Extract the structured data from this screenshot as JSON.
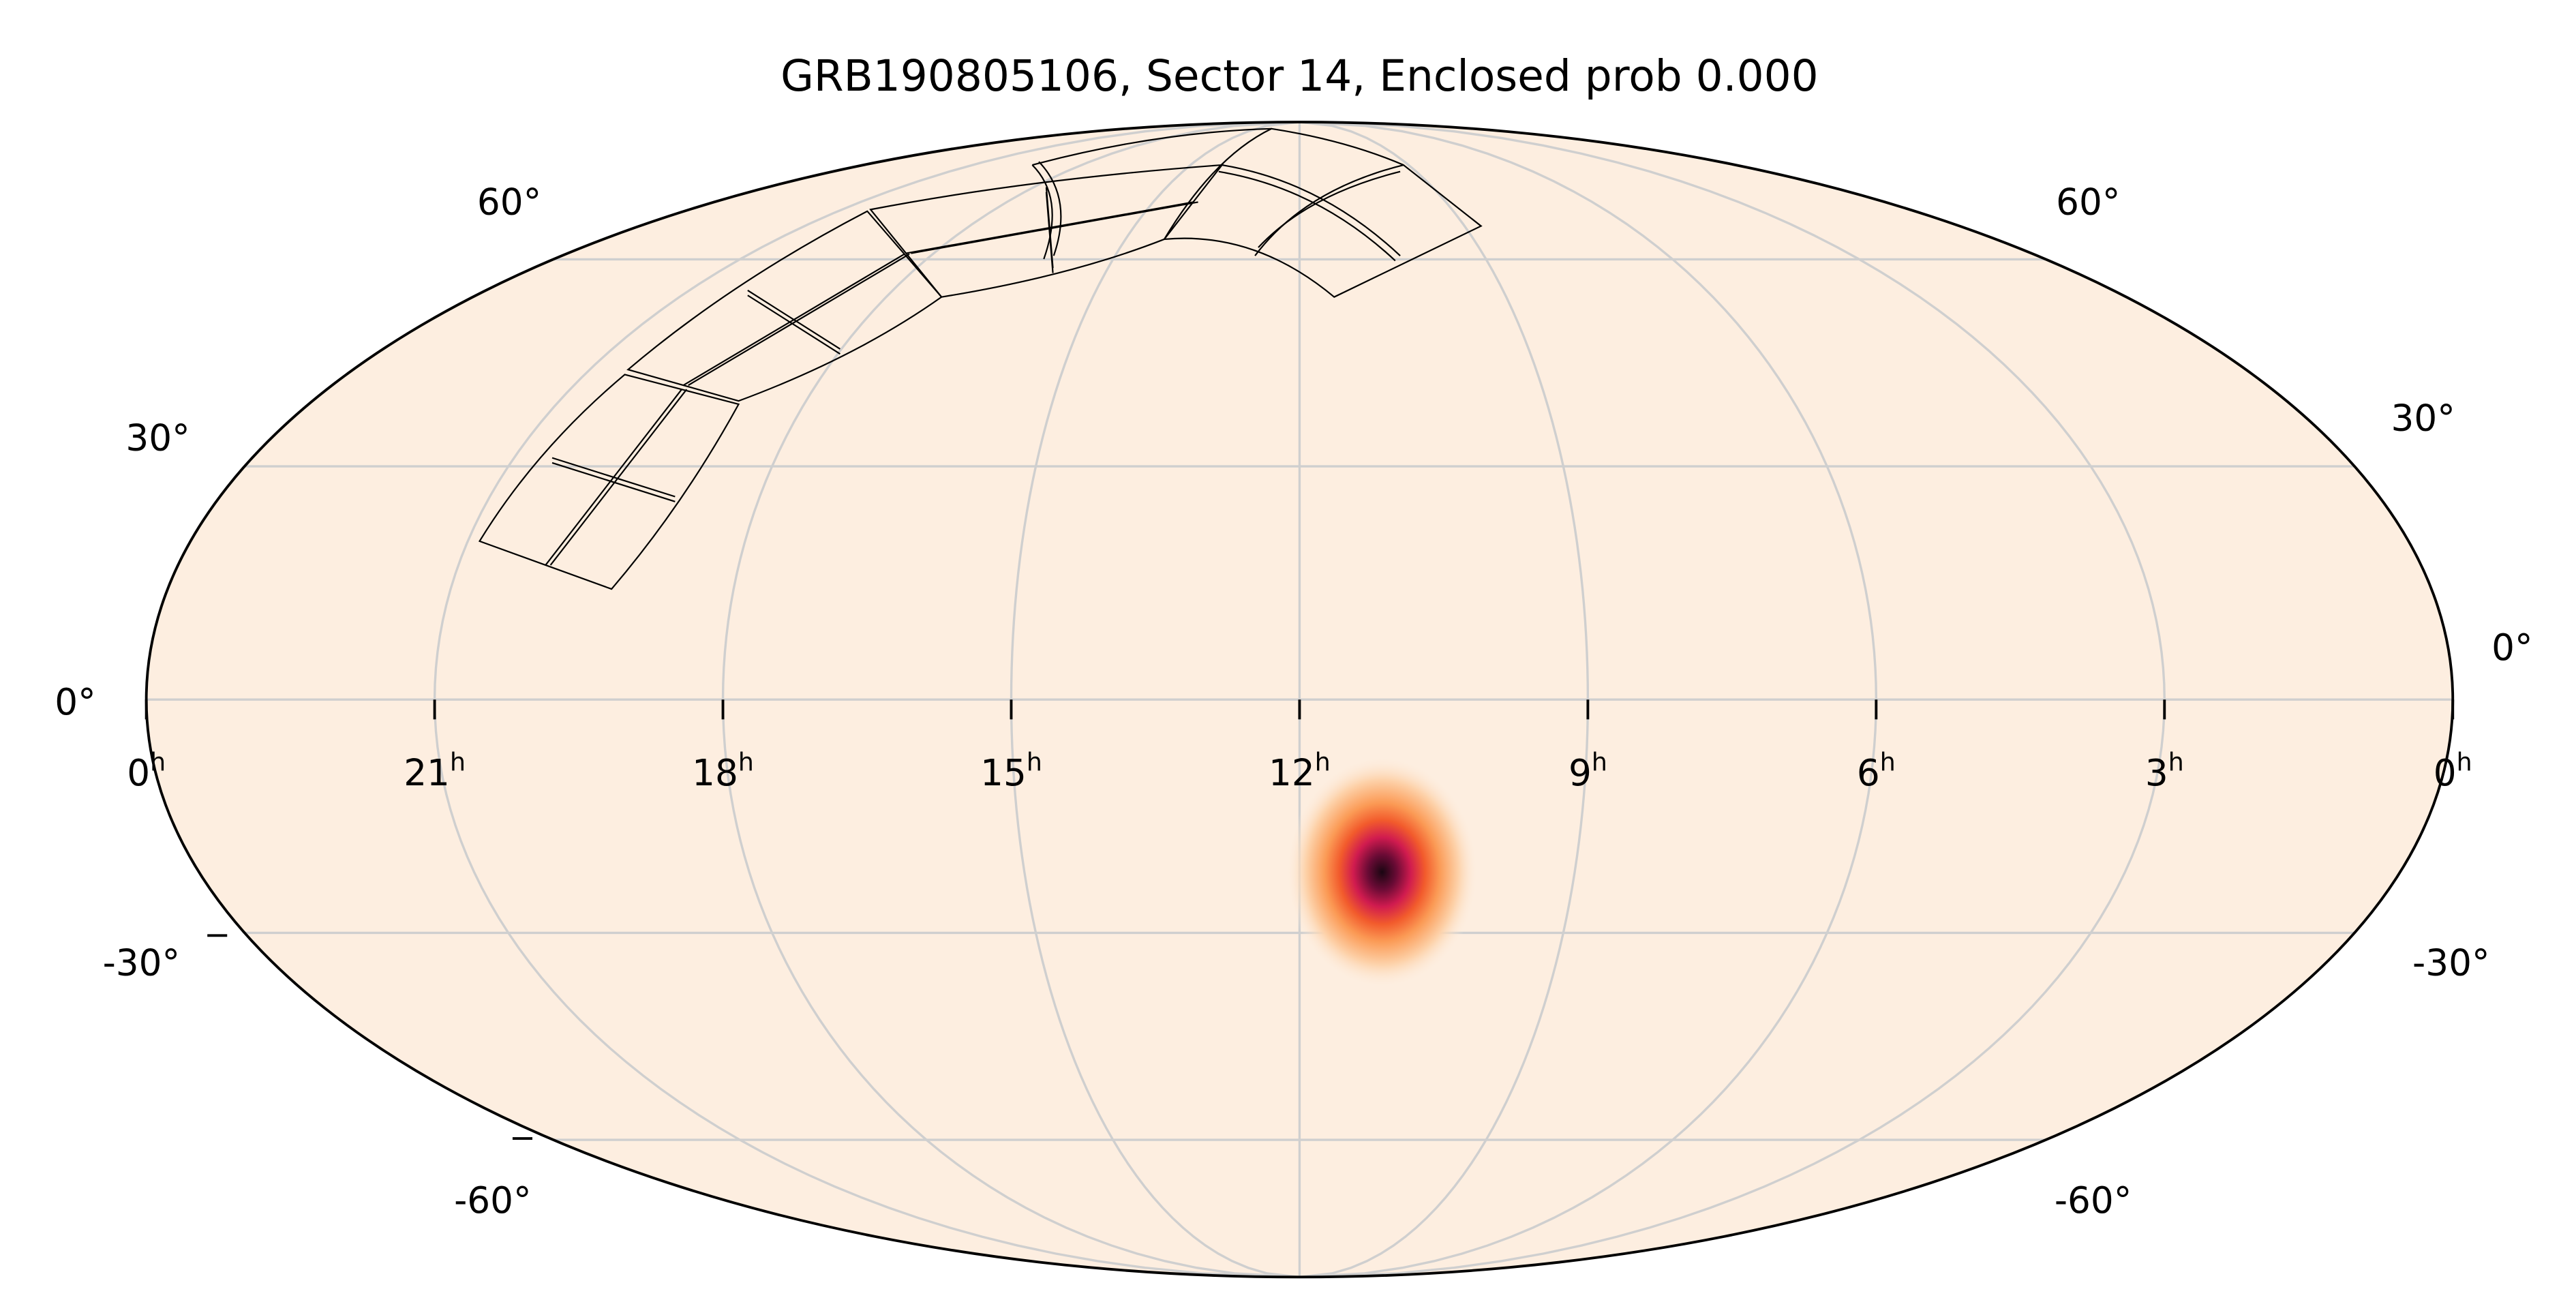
{
  "chart_data": {
    "type": "heatmap",
    "projection": "mollweide",
    "title": "GRB190805106, Sector 14, Enclosed prob 0.000",
    "colormap": "light cream to orange to crimson to near-black",
    "background_color": "#fdeee0",
    "grid": true,
    "x_ticks": [
      "0h",
      "21h",
      "18h",
      "15h",
      "12h",
      "9h",
      "6h",
      "3h",
      "0h"
    ],
    "x_tick_ra_hours": [
      24,
      21,
      18,
      15,
      12,
      9,
      6,
      3,
      0
    ],
    "y_ticks_left": [
      "60°",
      "30°",
      "0°",
      "-30°",
      "-60°"
    ],
    "y_ticks_right": [
      "60°",
      "30°",
      "0°",
      "-30°",
      "-60°"
    ],
    "y_tick_dec_values": [
      60,
      30,
      0,
      -30,
      -60
    ],
    "localization_peak": {
      "ra_hours": 11.1,
      "dec_deg": -22
    },
    "footprint": "TESS Sector 14 camera/CCD outlines (4 cameras, 2x2 CCDs each)"
  }
}
